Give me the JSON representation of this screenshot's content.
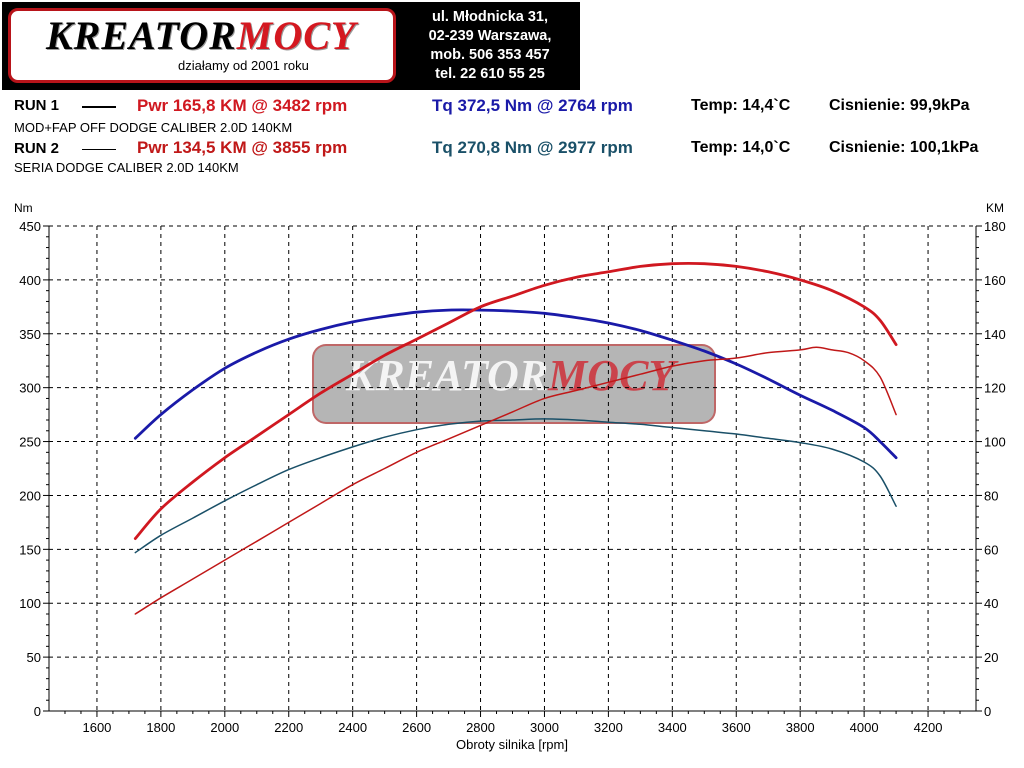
{
  "logo": {
    "brand_black": "KREATOR",
    "brand_red": "MOCY",
    "tagline": "działamy od 2001 roku"
  },
  "address": {
    "line1": "ul. Młodnicka 31,",
    "line2": "02-239  Warszawa,",
    "line3": "mob.  506 353 457",
    "line4": "tel.  22 610 55 25"
  },
  "runs": [
    {
      "label": "RUN 1",
      "pwr": "Pwr  165,8 KM @ 3482 rpm",
      "tq": "Tq 372,5 Nm @ 2764 rpm",
      "temp": "Temp: 14,4`C",
      "pressure": "Cisnienie: 99,9kPa",
      "description": "MOD+FAP OFF DODGE CALIBER 2.0D 140KM"
    },
    {
      "label": "RUN 2",
      "pwr": "Pwr  134,5 KM @ 3855 rpm",
      "tq": "Tq 270,8 Nm @ 2977 rpm",
      "temp": "Temp: 14,0`C",
      "pressure": "Cisnienie: 100,1kPa",
      "description": "SERIA DODGE CALIBER 2.0D 140KM"
    }
  ],
  "colors": {
    "run1_power": "#d01820",
    "run2_power": "#c01818",
    "run1_torque": "#1a1aa8",
    "run2_torque": "#1a5068",
    "grid": "#000000"
  },
  "chart_data": {
    "type": "line",
    "xlabel": "Obroty silnika [rpm]",
    "ylabel_left": "Nm",
    "ylabel_right": "KM",
    "xlim": [
      1450,
      4350
    ],
    "ylim_left": [
      0,
      450
    ],
    "ylim_right": [
      0,
      180
    ],
    "x_ticks": [
      1600,
      1800,
      2000,
      2200,
      2400,
      2600,
      2800,
      3000,
      3200,
      3400,
      3600,
      3800,
      4000,
      4200
    ],
    "y_ticks_left": [
      0,
      50,
      100,
      150,
      200,
      250,
      300,
      350,
      400,
      450
    ],
    "y_ticks_right": [
      0,
      20,
      40,
      60,
      80,
      100,
      120,
      140,
      160,
      180
    ],
    "grid": true,
    "series": [
      {
        "axis": "left",
        "color": "#1a1aa8",
        "x": [
          1720,
          1800,
          1900,
          2000,
          2100,
          2200,
          2300,
          2400,
          2500,
          2600,
          2700,
          2800,
          2900,
          3000,
          3100,
          3200,
          3300,
          3400,
          3500,
          3600,
          3700,
          3800,
          3900,
          4000,
          4050,
          4100
        ],
        "y": [
          253,
          275,
          298,
          318,
          333,
          345,
          354,
          361,
          366,
          370,
          372,
          372,
          371,
          369,
          365,
          360,
          353,
          344,
          334,
          322,
          308,
          293,
          279,
          263,
          250,
          235
        ]
      },
      {
        "axis": "right",
        "color": "#d01820",
        "x": [
          1720,
          1800,
          1900,
          2000,
          2100,
          2200,
          2300,
          2400,
          2500,
          2600,
          2700,
          2800,
          2900,
          3000,
          3100,
          3200,
          3300,
          3400,
          3500,
          3600,
          3700,
          3800,
          3900,
          4000,
          4050,
          4100
        ],
        "y": [
          64,
          75,
          85,
          94,
          102,
          110,
          118,
          125,
          132,
          138,
          144,
          150,
          154,
          158,
          161,
          163,
          165,
          166,
          166,
          165,
          163,
          160,
          156,
          150,
          145,
          136
        ]
      },
      {
        "axis": "left",
        "color": "#1a5068",
        "x": [
          1720,
          1800,
          1900,
          2000,
          2100,
          2200,
          2300,
          2400,
          2500,
          2600,
          2700,
          2800,
          2900,
          3000,
          3100,
          3200,
          3300,
          3400,
          3500,
          3600,
          3700,
          3800,
          3900,
          4000,
          4050,
          4100
        ],
        "y": [
          147,
          163,
          179,
          195,
          210,
          224,
          235,
          245,
          254,
          261,
          266,
          269,
          270,
          271,
          270,
          268,
          266,
          263,
          260,
          257,
          253,
          249,
          243,
          231,
          218,
          190
        ]
      },
      {
        "axis": "right",
        "color": "#c01818",
        "x": [
          1720,
          1800,
          1900,
          2000,
          2100,
          2200,
          2300,
          2400,
          2500,
          2600,
          2700,
          2800,
          2900,
          3000,
          3100,
          3200,
          3300,
          3400,
          3500,
          3600,
          3700,
          3800,
          3850,
          3900,
          3950,
          4000,
          4050,
          4100
        ],
        "y": [
          36,
          42,
          49,
          56,
          63,
          70,
          77,
          84,
          90,
          96,
          101,
          106,
          111,
          116,
          119,
          122,
          125,
          128,
          130,
          131,
          133,
          134,
          135,
          134,
          133,
          130,
          124,
          110
        ]
      }
    ]
  }
}
